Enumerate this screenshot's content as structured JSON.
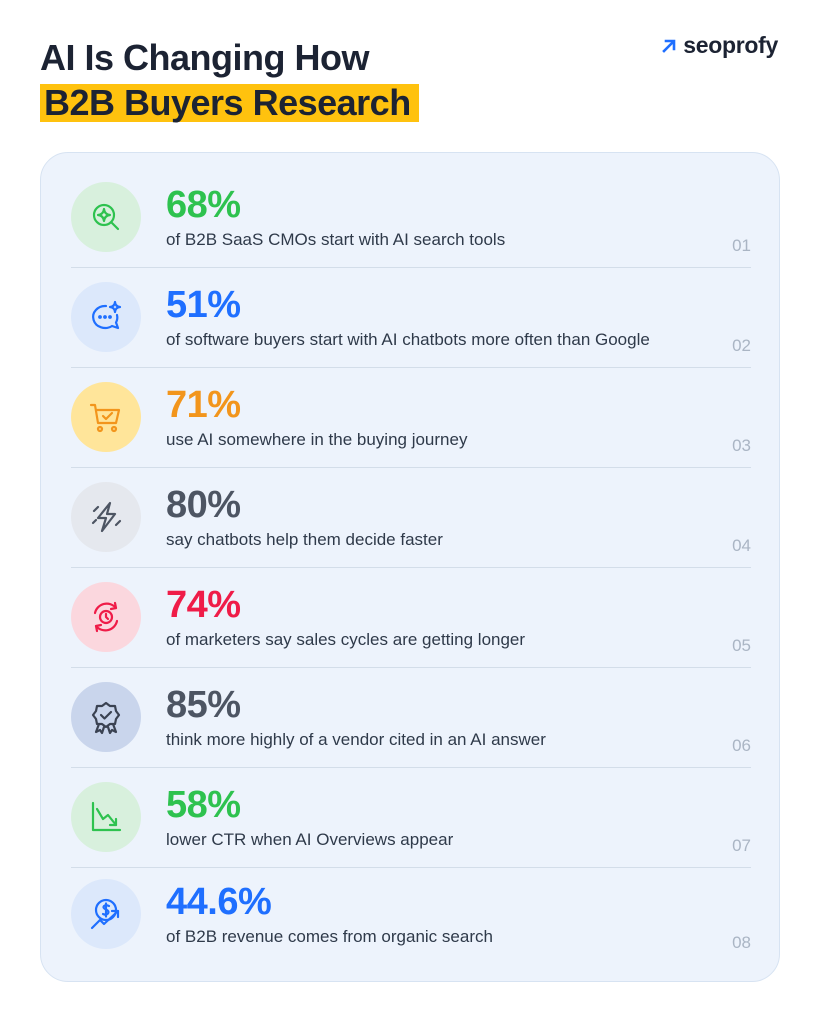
{
  "title": {
    "line1": "AI Is Changing How",
    "line2": "B2B Buyers Research"
  },
  "brand": {
    "name": "seoprofy",
    "icon": "arrow-up-right-icon",
    "icon_color": "#1f6fff"
  },
  "colors": {
    "highlight": "#ffc20e",
    "card_bg": "#edf3fc"
  },
  "stats": [
    {
      "value": "68%",
      "text": "of B2B SaaS CMOs start with AI search tools",
      "num": "01",
      "color": "#2ec24f",
      "icon": "ai-search-icon",
      "icon_bg": "#d8f0dd"
    },
    {
      "value": "51%",
      "text": "of software buyers start with AI chatbots more often than Google",
      "num": "02",
      "color": "#1f6fff",
      "icon": "chat-sparkle-icon",
      "icon_bg": "#dce8fb"
    },
    {
      "value": "71%",
      "text": "use AI somewhere in the buying journey",
      "num": "03",
      "color": "#f2951c",
      "icon": "shopping-cart-icon",
      "icon_bg": "#ffe59a"
    },
    {
      "value": "80%",
      "text": "say chatbots help them decide faster",
      "num": "04",
      "color": "#4d5563",
      "icon": "lightning-icon",
      "icon_bg": "#e5e8ee"
    },
    {
      "value": "74%",
      "text": "of marketers say sales cycles are getting longer",
      "num": "05",
      "color": "#ef1c48",
      "icon": "clock-cycle-icon",
      "icon_bg": "#fbd7de"
    },
    {
      "value": "85%",
      "text": "think more highly of a vendor cited in an AI answer",
      "num": "06",
      "color": "#4d5563",
      "icon": "badge-check-icon",
      "icon_bg": "#c9d5ec"
    },
    {
      "value": "58%",
      "text": "lower CTR when AI Overviews appear",
      "num": "07",
      "color": "#2ec24f",
      "icon": "trend-down-icon",
      "icon_bg": "#d8f0dd"
    },
    {
      "value": "44.6%",
      "text": "of B2B revenue comes from organic search",
      "num": "08",
      "color": "#1f6fff",
      "icon": "revenue-growth-icon",
      "icon_bg": "#dce8fb"
    }
  ]
}
